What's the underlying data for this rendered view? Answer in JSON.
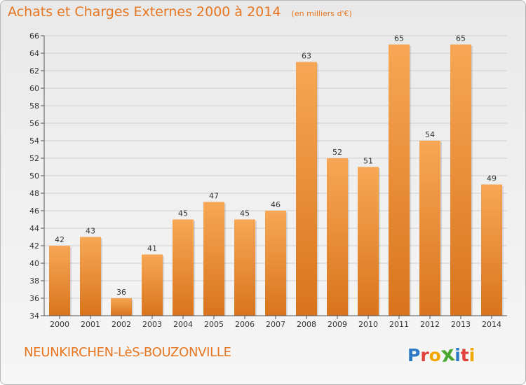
{
  "header": {
    "title": "Achats et Charges Externes 2000 à 2014",
    "unit_note": "(en milliers d'€)"
  },
  "footer": {
    "commune": "NEUNKIRCHEN-LèS-BOUZONVILLE",
    "logo_letters": [
      "P",
      "r",
      "o",
      "x",
      "i",
      "t",
      "i"
    ],
    "logo_colors": [
      "#2d79c6",
      "#e0413a",
      "#f2a800",
      "#4aa832",
      "#2d79c6",
      "#e0413a",
      "#f2a800"
    ]
  },
  "chart_data": {
    "type": "bar",
    "categories": [
      "2000",
      "2001",
      "2002",
      "2003",
      "2004",
      "2005",
      "2006",
      "2007",
      "2008",
      "2009",
      "2010",
      "2011",
      "2012",
      "2013",
      "2014"
    ],
    "values": [
      42,
      43,
      36,
      41,
      45,
      47,
      45,
      46,
      63,
      52,
      51,
      65,
      54,
      65,
      49
    ],
    "ylim": [
      34,
      66
    ],
    "yticks": [
      34,
      36,
      38,
      40,
      42,
      44,
      46,
      48,
      50,
      52,
      54,
      56,
      58,
      60,
      62,
      64,
      66
    ],
    "grid": true,
    "bar_color_top": "#f7a755",
    "bar_color_bottom": "#d9741d",
    "text_color": "#e8751f"
  }
}
